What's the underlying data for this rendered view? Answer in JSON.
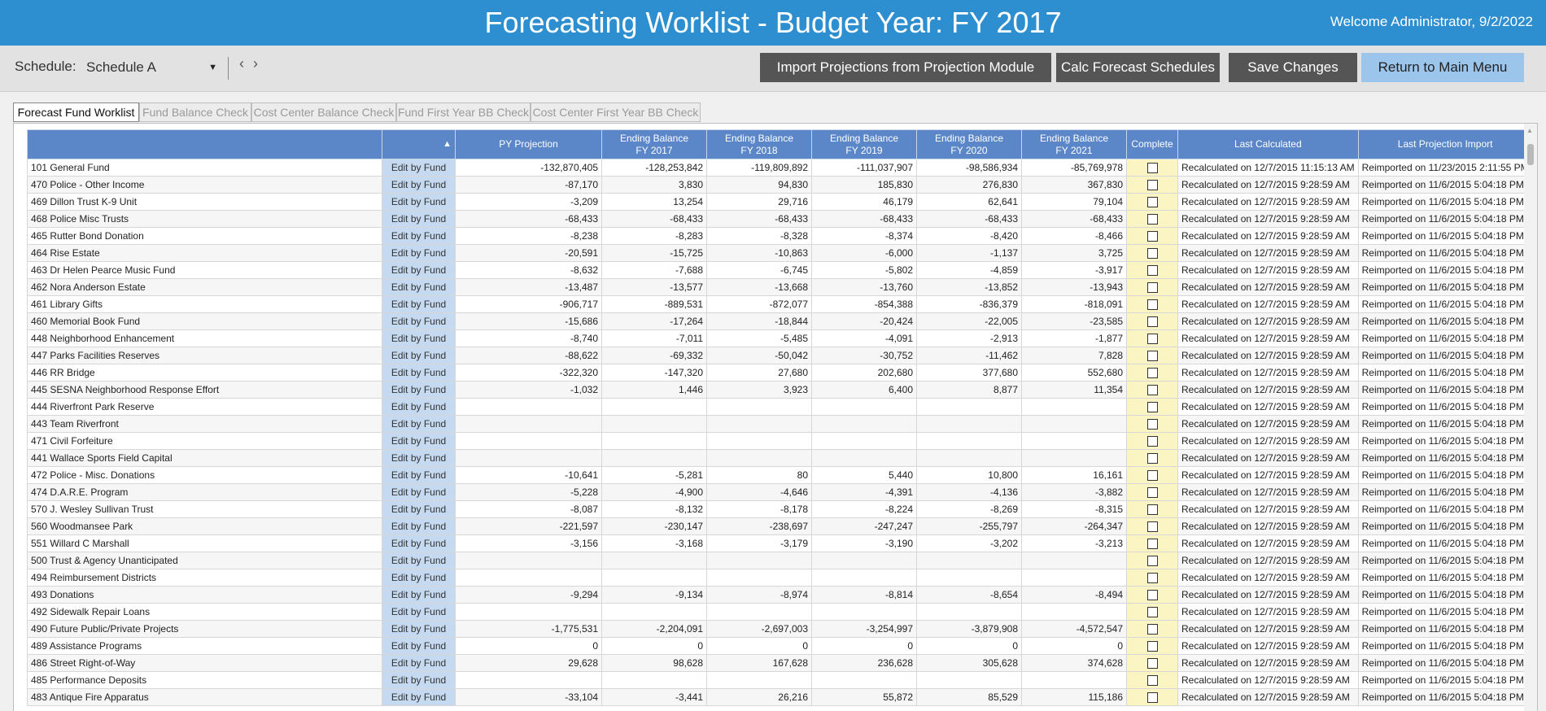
{
  "header": {
    "title": "Forecasting Worklist - Budget Year: FY 2017",
    "welcome": "Welcome Administrator, 9/2/2022"
  },
  "toolbar": {
    "schedule_label": "Schedule:",
    "schedule_value": "Schedule A",
    "prev": "‹",
    "next": "›",
    "import_btn": "Import Projections from Projection Module",
    "calc_btn": "Calc Forecast Schedules",
    "save_btn": "Save Changes",
    "return_btn": "Return to Main Menu"
  },
  "tabs": [
    "Forecast Fund Worklist",
    "Fund Balance Check",
    "Cost Center Balance Check",
    "Fund First Year BB Check",
    "Cost Center First Year BB Check"
  ],
  "columns": {
    "name": "",
    "edit": "",
    "py": "PY Projection",
    "fy2017_a": "Ending Balance",
    "fy2017_b": "FY 2017",
    "fy2018_a": "Ending Balance",
    "fy2018_b": "FY 2018",
    "fy2019_a": "Ending Balance",
    "fy2019_b": "FY 2019",
    "fy2020_a": "Ending Balance",
    "fy2020_b": "FY 2020",
    "fy2021_a": "Ending Balance",
    "fy2021_b": "FY 2021",
    "complete": "Complete",
    "last_calc": "Last Calculated",
    "last_import": "Last Projection Import"
  },
  "edit_label": "Edit by Fund",
  "rows": [
    {
      "name": "101 General Fund",
      "py": "-132,870,405",
      "fy2017": "-128,253,842",
      "fy2018": "-119,809,892",
      "fy2019": "-111,037,907",
      "fy2020": "-98,586,934",
      "fy2021": "-85,769,978",
      "calc": "Recalculated on 12/7/2015 11:15:13 AM",
      "imp": "Reimported on 11/23/2015 2:11:55 PM"
    },
    {
      "name": "470 Police - Other Income",
      "py": "-87,170",
      "fy2017": "3,830",
      "fy2018": "94,830",
      "fy2019": "185,830",
      "fy2020": "276,830",
      "fy2021": "367,830",
      "calc": "Recalculated on 12/7/2015 9:28:59 AM",
      "imp": "Reimported on 11/6/2015 5:04:18 PM"
    },
    {
      "name": "469 Dillon Trust K-9 Unit",
      "py": "-3,209",
      "fy2017": "13,254",
      "fy2018": "29,716",
      "fy2019": "46,179",
      "fy2020": "62,641",
      "fy2021": "79,104",
      "calc": "Recalculated on 12/7/2015 9:28:59 AM",
      "imp": "Reimported on 11/6/2015 5:04:18 PM"
    },
    {
      "name": "468 Police Misc Trusts",
      "py": "-68,433",
      "fy2017": "-68,433",
      "fy2018": "-68,433",
      "fy2019": "-68,433",
      "fy2020": "-68,433",
      "fy2021": "-68,433",
      "calc": "Recalculated on 12/7/2015 9:28:59 AM",
      "imp": "Reimported on 11/6/2015 5:04:18 PM"
    },
    {
      "name": "465 Rutter Bond Donation",
      "py": "-8,238",
      "fy2017": "-8,283",
      "fy2018": "-8,328",
      "fy2019": "-8,374",
      "fy2020": "-8,420",
      "fy2021": "-8,466",
      "calc": "Recalculated on 12/7/2015 9:28:59 AM",
      "imp": "Reimported on 11/6/2015 5:04:18 PM"
    },
    {
      "name": "464 Rise Estate",
      "py": "-20,591",
      "fy2017": "-15,725",
      "fy2018": "-10,863",
      "fy2019": "-6,000",
      "fy2020": "-1,137",
      "fy2021": "3,725",
      "calc": "Recalculated on 12/7/2015 9:28:59 AM",
      "imp": "Reimported on 11/6/2015 5:04:18 PM"
    },
    {
      "name": "463 Dr Helen Pearce Music Fund",
      "py": "-8,632",
      "fy2017": "-7,688",
      "fy2018": "-6,745",
      "fy2019": "-5,802",
      "fy2020": "-4,859",
      "fy2021": "-3,917",
      "calc": "Recalculated on 12/7/2015 9:28:59 AM",
      "imp": "Reimported on 11/6/2015 5:04:18 PM"
    },
    {
      "name": "462 Nora Anderson Estate",
      "py": "-13,487",
      "fy2017": "-13,577",
      "fy2018": "-13,668",
      "fy2019": "-13,760",
      "fy2020": "-13,852",
      "fy2021": "-13,943",
      "calc": "Recalculated on 12/7/2015 9:28:59 AM",
      "imp": "Reimported on 11/6/2015 5:04:18 PM"
    },
    {
      "name": "461 Library Gifts",
      "py": "-906,717",
      "fy2017": "-889,531",
      "fy2018": "-872,077",
      "fy2019": "-854,388",
      "fy2020": "-836,379",
      "fy2021": "-818,091",
      "calc": "Recalculated on 12/7/2015 9:28:59 AM",
      "imp": "Reimported on 11/6/2015 5:04:18 PM"
    },
    {
      "name": "460 Memorial Book Fund",
      "py": "-15,686",
      "fy2017": "-17,264",
      "fy2018": "-18,844",
      "fy2019": "-20,424",
      "fy2020": "-22,005",
      "fy2021": "-23,585",
      "calc": "Recalculated on 12/7/2015 9:28:59 AM",
      "imp": "Reimported on 11/6/2015 5:04:18 PM"
    },
    {
      "name": "448 Neighborhood Enhancement",
      "py": "-8,740",
      "fy2017": "-7,011",
      "fy2018": "-5,485",
      "fy2019": "-4,091",
      "fy2020": "-2,913",
      "fy2021": "-1,877",
      "calc": "Recalculated on 12/7/2015 9:28:59 AM",
      "imp": "Reimported on 11/6/2015 5:04:18 PM"
    },
    {
      "name": "447 Parks Facilities Reserves",
      "py": "-88,622",
      "fy2017": "-69,332",
      "fy2018": "-50,042",
      "fy2019": "-30,752",
      "fy2020": "-11,462",
      "fy2021": "7,828",
      "calc": "Recalculated on 12/7/2015 9:28:59 AM",
      "imp": "Reimported on 11/6/2015 5:04:18 PM"
    },
    {
      "name": "446 RR Bridge",
      "py": "-322,320",
      "fy2017": "-147,320",
      "fy2018": "27,680",
      "fy2019": "202,680",
      "fy2020": "377,680",
      "fy2021": "552,680",
      "calc": "Recalculated on 12/7/2015 9:28:59 AM",
      "imp": "Reimported on 11/6/2015 5:04:18 PM"
    },
    {
      "name": "445 SESNA Neighborhood Response Effort",
      "py": "-1,032",
      "fy2017": "1,446",
      "fy2018": "3,923",
      "fy2019": "6,400",
      "fy2020": "8,877",
      "fy2021": "11,354",
      "calc": "Recalculated on 12/7/2015 9:28:59 AM",
      "imp": "Reimported on 11/6/2015 5:04:18 PM"
    },
    {
      "name": "444 Riverfront Park Reserve",
      "py": "",
      "fy2017": "",
      "fy2018": "",
      "fy2019": "",
      "fy2020": "",
      "fy2021": "",
      "calc": "Recalculated on 12/7/2015 9:28:59 AM",
      "imp": "Reimported on 11/6/2015 5:04:18 PM"
    },
    {
      "name": "443 Team Riverfront",
      "py": "",
      "fy2017": "",
      "fy2018": "",
      "fy2019": "",
      "fy2020": "",
      "fy2021": "",
      "calc": "Recalculated on 12/7/2015 9:28:59 AM",
      "imp": "Reimported on 11/6/2015 5:04:18 PM"
    },
    {
      "name": "471  Civil Forfeiture",
      "py": "",
      "fy2017": "",
      "fy2018": "",
      "fy2019": "",
      "fy2020": "",
      "fy2021": "",
      "calc": "Recalculated on 12/7/2015 9:28:59 AM",
      "imp": "Reimported on 11/6/2015 5:04:18 PM"
    },
    {
      "name": "441 Wallace Sports Field Capital",
      "py": "",
      "fy2017": "",
      "fy2018": "",
      "fy2019": "",
      "fy2020": "",
      "fy2021": "",
      "calc": "Recalculated on 12/7/2015 9:28:59 AM",
      "imp": "Reimported on 11/6/2015 5:04:18 PM"
    },
    {
      "name": "472 Police - Misc. Donations",
      "py": "-10,641",
      "fy2017": "-5,281",
      "fy2018": "80",
      "fy2019": "5,440",
      "fy2020": "10,800",
      "fy2021": "16,161",
      "calc": "Recalculated on 12/7/2015 9:28:59 AM",
      "imp": "Reimported on 11/6/2015 5:04:18 PM"
    },
    {
      "name": "474 D.A.R.E. Program",
      "py": "-5,228",
      "fy2017": "-4,900",
      "fy2018": "-4,646",
      "fy2019": "-4,391",
      "fy2020": "-4,136",
      "fy2021": "-3,882",
      "calc": "Recalculated on 12/7/2015 9:28:59 AM",
      "imp": "Reimported on 11/6/2015 5:04:18 PM"
    },
    {
      "name": "570 J. Wesley Sullivan Trust",
      "py": "-8,087",
      "fy2017": "-8,132",
      "fy2018": "-8,178",
      "fy2019": "-8,224",
      "fy2020": "-8,269",
      "fy2021": "-8,315",
      "calc": "Recalculated on 12/7/2015 9:28:59 AM",
      "imp": "Reimported on 11/6/2015 5:04:18 PM"
    },
    {
      "name": "560 Woodmansee Park",
      "py": "-221,597",
      "fy2017": "-230,147",
      "fy2018": "-238,697",
      "fy2019": "-247,247",
      "fy2020": "-255,797",
      "fy2021": "-264,347",
      "calc": "Recalculated on 12/7/2015 9:28:59 AM",
      "imp": "Reimported on 11/6/2015 5:04:18 PM"
    },
    {
      "name": "551 Willard C Marshall",
      "py": "-3,156",
      "fy2017": "-3,168",
      "fy2018": "-3,179",
      "fy2019": "-3,190",
      "fy2020": "-3,202",
      "fy2021": "-3,213",
      "calc": "Recalculated on 12/7/2015 9:28:59 AM",
      "imp": "Reimported on 11/6/2015 5:04:18 PM"
    },
    {
      "name": "500 Trust & Agency Unanticipated",
      "py": "",
      "fy2017": "",
      "fy2018": "",
      "fy2019": "",
      "fy2020": "",
      "fy2021": "",
      "calc": "Recalculated on 12/7/2015 9:28:59 AM",
      "imp": "Reimported on 11/6/2015 5:04:18 PM"
    },
    {
      "name": "494 Reimbursement Districts",
      "py": "",
      "fy2017": "",
      "fy2018": "",
      "fy2019": "",
      "fy2020": "",
      "fy2021": "",
      "calc": "Recalculated on 12/7/2015 9:28:59 AM",
      "imp": "Reimported on 11/6/2015 5:04:18 PM"
    },
    {
      "name": "493 Donations",
      "py": "-9,294",
      "fy2017": "-9,134",
      "fy2018": "-8,974",
      "fy2019": "-8,814",
      "fy2020": "-8,654",
      "fy2021": "-8,494",
      "calc": "Recalculated on 12/7/2015 9:28:59 AM",
      "imp": "Reimported on 11/6/2015 5:04:18 PM"
    },
    {
      "name": "492 Sidewalk Repair Loans",
      "py": "",
      "fy2017": "",
      "fy2018": "",
      "fy2019": "",
      "fy2020": "",
      "fy2021": "",
      "calc": "Recalculated on 12/7/2015 9:28:59 AM",
      "imp": "Reimported on 11/6/2015 5:04:18 PM"
    },
    {
      "name": "490 Future Public/Private Projects",
      "py": "-1,775,531",
      "fy2017": "-2,204,091",
      "fy2018": "-2,697,003",
      "fy2019": "-3,254,997",
      "fy2020": "-3,879,908",
      "fy2021": "-4,572,547",
      "calc": "Recalculated on 12/7/2015 9:28:59 AM",
      "imp": "Reimported on 11/6/2015 5:04:18 PM"
    },
    {
      "name": "489 Assistance Programs",
      "py": "0",
      "fy2017": "0",
      "fy2018": "0",
      "fy2019": "0",
      "fy2020": "0",
      "fy2021": "0",
      "calc": "Recalculated on 12/7/2015 9:28:59 AM",
      "imp": "Reimported on 11/6/2015 5:04:18 PM"
    },
    {
      "name": "486 Street Right-of-Way",
      "py": "29,628",
      "fy2017": "98,628",
      "fy2018": "167,628",
      "fy2019": "236,628",
      "fy2020": "305,628",
      "fy2021": "374,628",
      "calc": "Recalculated on 12/7/2015 9:28:59 AM",
      "imp": "Reimported on 11/6/2015 5:04:18 PM"
    },
    {
      "name": "485 Performance Deposits",
      "py": "",
      "fy2017": "",
      "fy2018": "",
      "fy2019": "",
      "fy2020": "",
      "fy2021": "",
      "calc": "Recalculated on 12/7/2015 9:28:59 AM",
      "imp": "Reimported on 11/6/2015 5:04:18 PM"
    },
    {
      "name": "483 Antique Fire Apparatus",
      "py": "-33,104",
      "fy2017": "-3,441",
      "fy2018": "26,216",
      "fy2019": "55,872",
      "fy2020": "85,529",
      "fy2021": "115,186",
      "calc": "Recalculated on 12/7/2015 9:28:59 AM",
      "imp": "Reimported on 11/6/2015 5:04:18 PM"
    }
  ]
}
